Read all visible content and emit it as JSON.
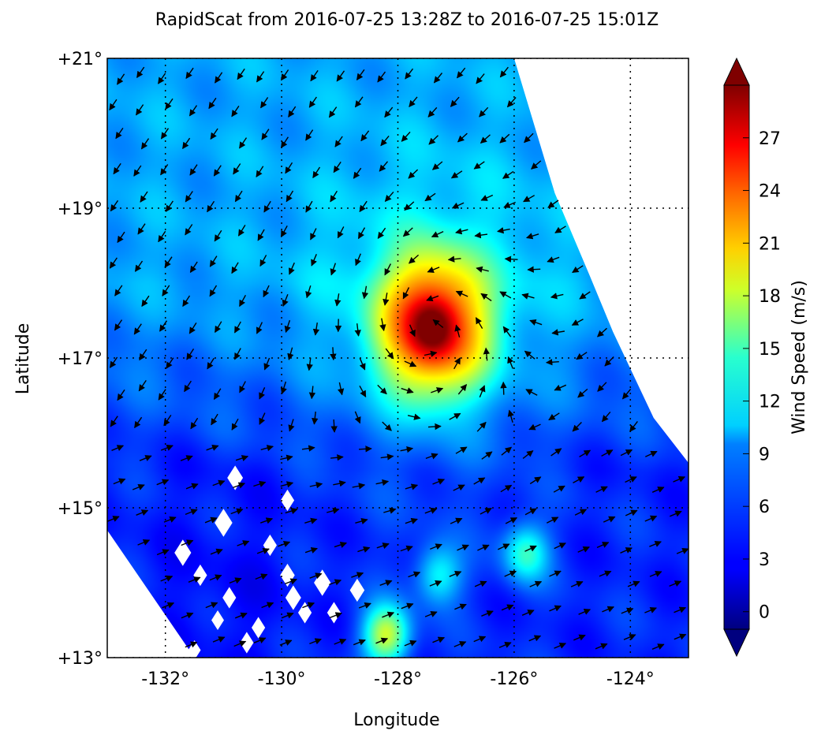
{
  "chart_data": {
    "type": "heatmap",
    "subtype": "wind-vector-field",
    "title": "RapidScat  from 2016-07-25 13:28Z to 2016-07-25 15:01Z",
    "xlabel": "Longitude",
    "ylabel": "Latitude",
    "xlim": [
      -133,
      -123
    ],
    "ylim": [
      13,
      21
    ],
    "xgrid": [
      -132,
      -130,
      -128,
      -126,
      -124
    ],
    "ygrid": [
      13,
      15,
      17,
      19,
      21
    ],
    "grid": "dotted",
    "x_tick_labels": [
      {
        "value": -132,
        "label": "-132°"
      },
      {
        "value": -130,
        "label": "-130°"
      },
      {
        "value": -128,
        "label": "-128°"
      },
      {
        "value": -126,
        "label": "-126°"
      },
      {
        "value": -124,
        "label": "-124°"
      }
    ],
    "y_tick_labels": [
      {
        "value": 21,
        "label": "+21°"
      },
      {
        "value": 19,
        "label": "+19°"
      },
      {
        "value": 17,
        "label": "+17°"
      },
      {
        "value": 15,
        "label": "+15°"
      },
      {
        "value": 13,
        "label": "+13°"
      }
    ],
    "swath_polygon": [
      [
        -133,
        21
      ],
      [
        -131.2,
        21
      ],
      [
        -127,
        21
      ],
      [
        -126,
        21
      ],
      [
        -125.3,
        19.2
      ],
      [
        -124.7,
        18.1
      ],
      [
        -124.3,
        17.35
      ],
      [
        -123.6,
        16.2
      ],
      [
        -123,
        15.6
      ],
      [
        -123,
        13
      ],
      [
        -131.5,
        13
      ],
      [
        -133,
        14.7
      ]
    ],
    "gaps": [
      {
        "lon": -130.8,
        "lat": 15.4,
        "size": 0.15
      },
      {
        "lon": -129.9,
        "lat": 15.1,
        "size": 0.13
      },
      {
        "lon": -131.0,
        "lat": 14.8,
        "size": 0.17
      },
      {
        "lon": -131.7,
        "lat": 14.4,
        "size": 0.16
      },
      {
        "lon": -131.4,
        "lat": 14.1,
        "size": 0.13
      },
      {
        "lon": -130.2,
        "lat": 14.5,
        "size": 0.13
      },
      {
        "lon": -129.9,
        "lat": 14.1,
        "size": 0.14
      },
      {
        "lon": -129.3,
        "lat": 14.0,
        "size": 0.16
      },
      {
        "lon": -128.7,
        "lat": 13.9,
        "size": 0.14
      },
      {
        "lon": -129.8,
        "lat": 13.8,
        "size": 0.15
      },
      {
        "lon": -129.6,
        "lat": 13.6,
        "size": 0.13
      },
      {
        "lon": -129.1,
        "lat": 13.6,
        "size": 0.13
      },
      {
        "lon": -130.9,
        "lat": 13.8,
        "size": 0.13
      },
      {
        "lon": -131.1,
        "lat": 13.5,
        "size": 0.12
      },
      {
        "lon": -130.4,
        "lat": 13.4,
        "size": 0.13
      },
      {
        "lon": -130.6,
        "lat": 13.2,
        "size": 0.13
      },
      {
        "lon": -131.5,
        "lat": 13.1,
        "size": 0.12
      }
    ],
    "wind_field": {
      "storm_center": {
        "lon": -127.4,
        "lat": 17.4
      },
      "peak_speed": 29,
      "background_speed_north": 8,
      "background_speed_south": 4,
      "background_speed_southwest": 3,
      "secondary_maxima": [
        {
          "lon": -128.2,
          "lat": 13.3,
          "speed": 17
        },
        {
          "lon": -127.3,
          "lat": 14.1,
          "speed": 11
        },
        {
          "lon": -125.8,
          "lat": 14.4,
          "speed": 12
        }
      ],
      "vector_spacing_deg": 0.42
    },
    "colorbar": {
      "label": "Wind Speed (m/s)",
      "min": -1,
      "max": 30,
      "extend": "both",
      "colormap": "jet",
      "ticks": [
        0,
        3,
        6,
        9,
        12,
        15,
        18,
        21,
        24,
        27
      ]
    }
  }
}
